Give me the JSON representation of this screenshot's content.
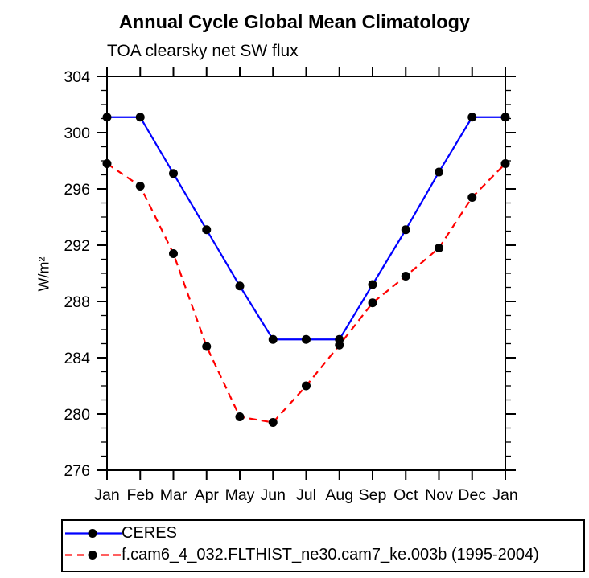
{
  "chart_data": {
    "type": "line",
    "title": "Annual Cycle Global Mean Climatology",
    "subtitle": "TOA clearsky net SW flux",
    "xlabel": "",
    "ylabel": "W/m²",
    "categories": [
      "Jan",
      "Feb",
      "Mar",
      "Apr",
      "May",
      "Jun",
      "Jul",
      "Aug",
      "Sep",
      "Oct",
      "Nov",
      "Dec",
      "Jan"
    ],
    "ylim": [
      276,
      304
    ],
    "yticks": [
      276,
      280,
      284,
      288,
      292,
      296,
      300,
      304
    ],
    "minor_tick_interval": 1,
    "grid": false,
    "legend_position": "bottom-left-box",
    "series": [
      {
        "name": "CERES",
        "color": "#0000ff",
        "style": "solid",
        "marker": "filled-circle",
        "marker_color": "#000000",
        "values": [
          301.1,
          301.1,
          297.1,
          293.1,
          289.1,
          285.3,
          285.3,
          285.3,
          289.2,
          293.1,
          297.2,
          301.1,
          301.1
        ]
      },
      {
        "name": "f.cam6_4_032.FLTHIST_ne30.cam7_ke.003b (1995-2004)",
        "color": "#ff0000",
        "style": "dashed",
        "marker": "filled-circle",
        "marker_color": "#000000",
        "values": [
          297.8,
          296.2,
          291.4,
          284.8,
          279.8,
          279.4,
          282.0,
          284.9,
          287.9,
          289.8,
          291.8,
          295.4,
          297.8
        ]
      }
    ]
  },
  "colors": {
    "background": "#ffffff",
    "axis": "#000000",
    "ceres_line": "#0000ff",
    "model_line": "#ff0000",
    "marker": "#000000"
  }
}
